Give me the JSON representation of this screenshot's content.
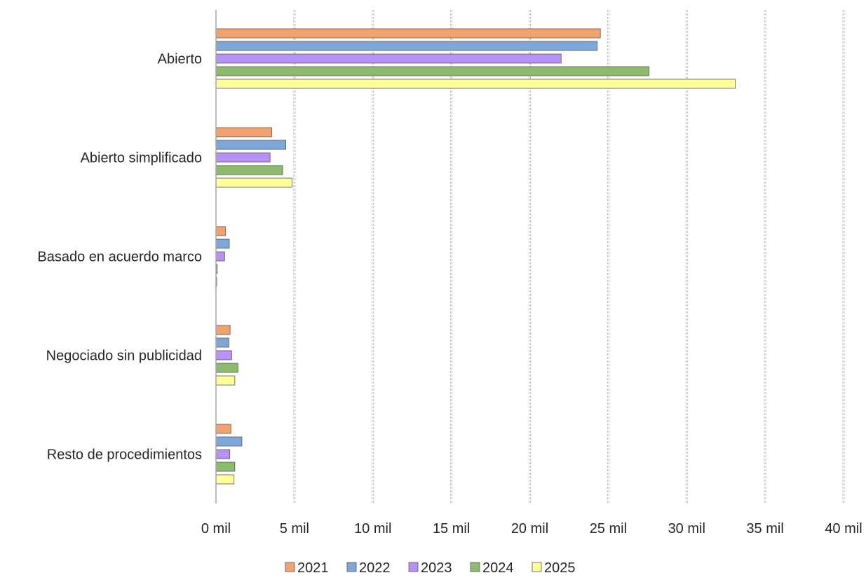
{
  "chart_data": {
    "type": "bar",
    "orientation": "horizontal",
    "title": "",
    "xlabel": "",
    "ylabel": "",
    "categories": [
      "Abierto",
      "Abierto simplificado",
      "Basado en acuerdo marco",
      "Negociado sin publicidad",
      "Resto de procedimientos"
    ],
    "series": [
      {
        "name": "2021",
        "color": "#F4A26D",
        "values": [
          24500,
          3550,
          600,
          900,
          950
        ]
      },
      {
        "name": "2022",
        "color": "#7DA7D9",
        "values": [
          24300,
          4450,
          850,
          820,
          1650
        ]
      },
      {
        "name": "2023",
        "color": "#B692F6",
        "values": [
          22000,
          3450,
          550,
          1000,
          880
        ]
      },
      {
        "name": "2024",
        "color": "#8DBB6E",
        "values": [
          27600,
          4250,
          80,
          1400,
          1200
        ]
      },
      {
        "name": "2025",
        "color": "#FFFF99",
        "values": [
          33100,
          4850,
          40,
          1200,
          1150
        ]
      }
    ],
    "xlim": [
      0,
      40000
    ],
    "xticks": [
      0,
      5000,
      10000,
      15000,
      20000,
      25000,
      30000,
      35000,
      40000
    ],
    "xtick_labels": [
      "0 mil",
      "5 mil",
      "10 mil",
      "15 mil",
      "20 mil",
      "25 mil",
      "30 mil",
      "35 mil",
      "40 mil"
    ],
    "grid": "vertical-dashed",
    "legend": "bottom"
  }
}
